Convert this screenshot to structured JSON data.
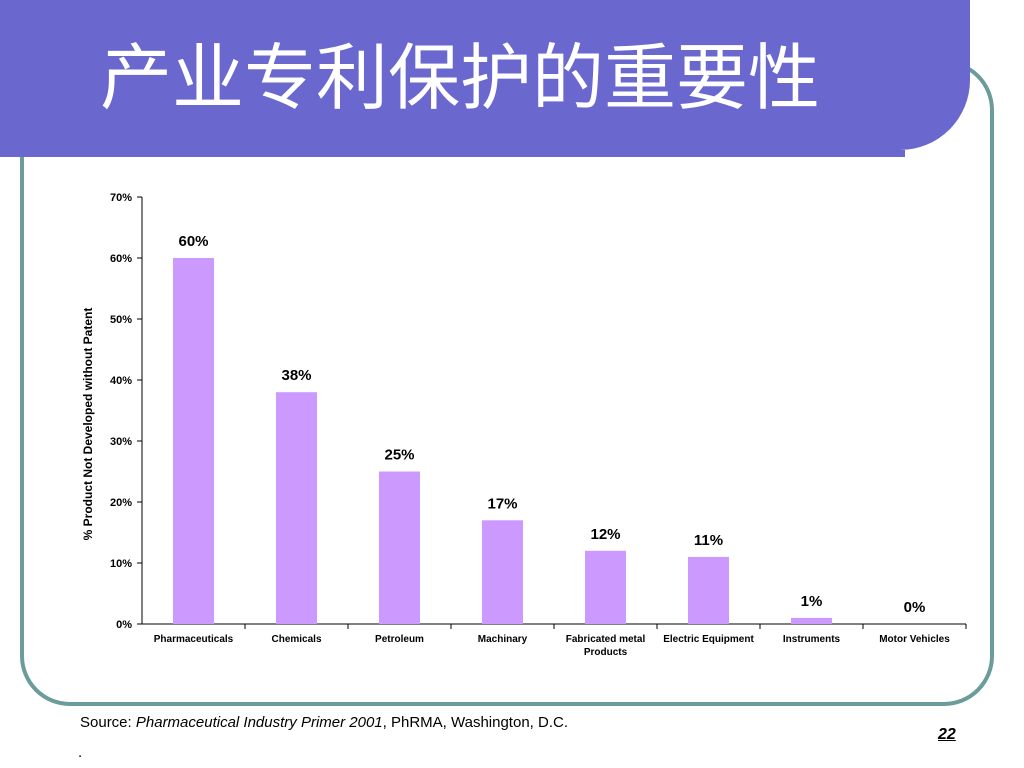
{
  "slide": {
    "title": "产业专利保护的重要性",
    "source_prefix": "Source: ",
    "source_italic": "Pharmaceutical Industry Primer 2001",
    "source_suffix": ", PhRMA, Washington, D.C.",
    "dot": ".",
    "page_number": "22"
  },
  "colors": {
    "banner": "#6a68cf",
    "bar": "#cc99ff",
    "frame": "#6b9b9b"
  },
  "chart_data": {
    "type": "bar",
    "title": "",
    "xlabel": "",
    "ylabel": "% Product Not Developed without Patent",
    "ylim": [
      0,
      70
    ],
    "yticks": [
      0,
      10,
      20,
      30,
      40,
      50,
      60,
      70
    ],
    "ytick_labels": [
      "0%",
      "10%",
      "20%",
      "30%",
      "40%",
      "50%",
      "60%",
      "70%"
    ],
    "categories": [
      [
        "Pharmaceuticals"
      ],
      [
        "Chemicals"
      ],
      [
        "Petroleum"
      ],
      [
        "Machinary"
      ],
      [
        "Fabricated metal",
        "Products"
      ],
      [
        "Electric Equipment"
      ],
      [
        "Instruments"
      ],
      [
        "Motor Vehicles"
      ]
    ],
    "values": [
      60,
      38,
      25,
      17,
      12,
      11,
      1,
      0
    ],
    "value_labels": [
      "60%",
      "38%",
      "25%",
      "17%",
      "12%",
      "11%",
      "1%",
      "0%"
    ],
    "grid": false,
    "legend": "none"
  }
}
